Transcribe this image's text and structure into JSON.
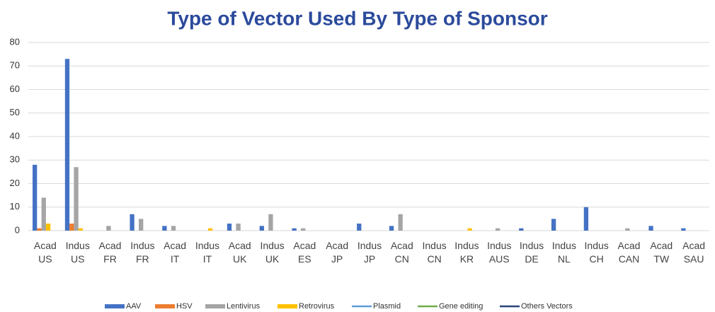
{
  "chart_data": {
    "type": "bar",
    "title": "Type of Vector Used By Type of Sponsor",
    "categories": [
      "Acad\nUS",
      "Indus\nUS",
      "Acad\nFR",
      "Indus\nFR",
      "Acad\nIT",
      "Indus\nIT",
      "Acad\nUK",
      "Indus\nUK",
      "Acad\nES",
      "Acad\nJP",
      "Indus\nJP",
      "Acad\nCN",
      "Indus\nCN",
      "Indus\nKR",
      "Indus\nAUS",
      "Indus\nDE",
      "Indus\nNL",
      "Indus\nCH",
      "Acad\nCAN",
      "Acad\nTW",
      "Acad\nSAU"
    ],
    "series": [
      {
        "name": "AAV",
        "color": "#4472c4",
        "values": [
          28,
          73,
          0,
          7,
          2,
          0,
          3,
          2,
          1,
          0,
          3,
          2,
          0,
          0,
          0,
          1,
          5,
          10,
          0,
          2,
          1
        ]
      },
      {
        "name": "HSV",
        "color": "#ed7d31",
        "values": [
          1,
          3,
          0,
          0,
          0,
          0,
          0,
          0,
          0,
          0,
          0,
          0,
          0,
          0,
          0,
          0,
          0,
          0,
          0,
          0,
          0
        ]
      },
      {
        "name": "Lentivirus",
        "color": "#a5a5a5",
        "values": [
          14,
          27,
          2,
          5,
          2,
          0,
          3,
          7,
          1,
          0,
          0,
          7,
          0,
          0,
          1,
          0,
          0,
          0,
          1,
          0,
          0
        ]
      },
      {
        "name": "Retrovirus",
        "color": "#ffc000",
        "values": [
          3,
          1,
          0,
          0,
          0,
          1,
          0,
          0,
          0,
          0,
          0,
          0,
          0,
          1,
          0,
          0,
          0,
          0,
          0,
          0,
          0
        ]
      },
      {
        "name": "Plasmid",
        "color": "#5b9bd5",
        "values": [
          0,
          0,
          0,
          0,
          0,
          0,
          0,
          0,
          0,
          0,
          0,
          0,
          0,
          0,
          0,
          0,
          0,
          0,
          0,
          0,
          0
        ]
      },
      {
        "name": "Gene editing",
        "color": "#70ad47",
        "values": [
          0,
          0,
          0,
          0,
          0,
          0,
          0,
          0,
          0,
          0,
          0,
          0,
          0,
          0,
          0,
          0,
          0,
          0,
          0,
          0,
          0
        ]
      },
      {
        "name": "Others Vectors",
        "color": "#264478",
        "values": [
          0,
          0,
          0,
          0,
          0,
          0,
          0,
          0,
          0,
          0,
          0,
          0,
          0,
          0,
          0,
          0,
          0,
          0,
          0,
          0,
          0
        ]
      }
    ],
    "ylim": [
      0,
      80
    ],
    "yticks": [
      0,
      10,
      20,
      30,
      40,
      50,
      60,
      70,
      80
    ],
    "grid": true,
    "legend": "bottom"
  }
}
